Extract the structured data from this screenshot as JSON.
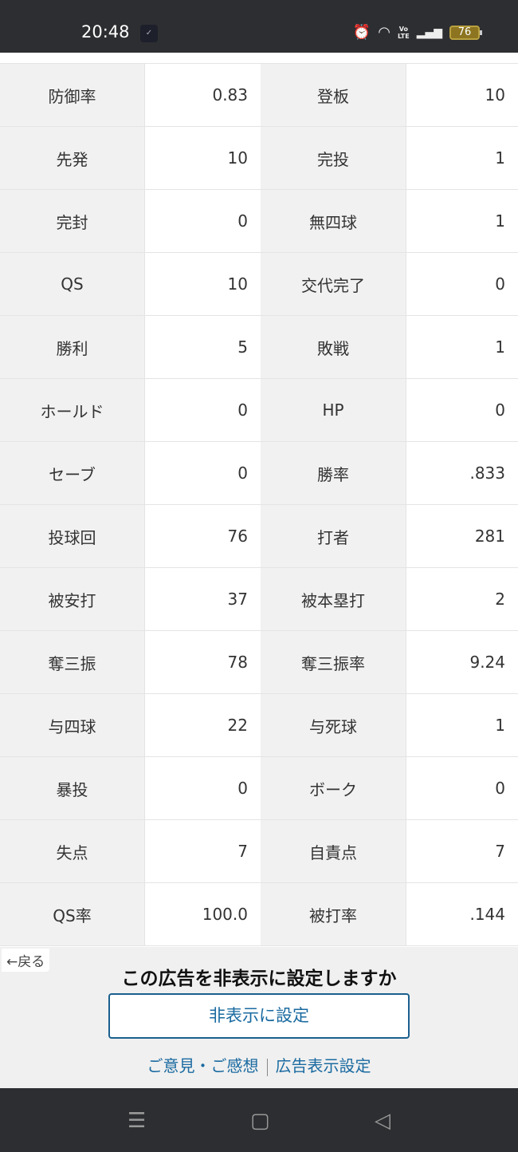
{
  "status_bar": {
    "time": "20:48",
    "battery": "76",
    "icons": [
      "app-notification-icon",
      "alarm-icon",
      "wifi-icon",
      "volte-icon",
      "signal-icon",
      "battery-icon"
    ],
    "volte_label": "Vo LTE"
  },
  "stats": [
    [
      "防御率",
      "0.83",
      "登板",
      "10"
    ],
    [
      "先発",
      "10",
      "完投",
      "1"
    ],
    [
      "完封",
      "0",
      "無四球",
      "1"
    ],
    [
      "QS",
      "10",
      "交代完了",
      "0"
    ],
    [
      "勝利",
      "5",
      "敗戦",
      "1"
    ],
    [
      "ホールド",
      "0",
      "HP",
      "0"
    ],
    [
      "セーブ",
      "0",
      "勝率",
      ".833"
    ],
    [
      "投球回",
      "76",
      "打者",
      "281"
    ],
    [
      "被安打",
      "37",
      "被本塁打",
      "2"
    ],
    [
      "奪三振",
      "78",
      "奪三振率",
      "9.24"
    ],
    [
      "与四球",
      "22",
      "与死球",
      "1"
    ],
    [
      "暴投",
      "0",
      "ボーク",
      "0"
    ],
    [
      "失点",
      "7",
      "自責点",
      "7"
    ],
    [
      "QS率",
      "100.0",
      "被打率",
      ".144"
    ]
  ],
  "ad": {
    "back": "←戻る",
    "question": "この広告を非表示に設定しますか",
    "button": "非表示に設定",
    "feedback": "ご意見・ご感想",
    "settings": "広告表示設定"
  },
  "nav": {
    "icons": [
      "menu-icon",
      "home-icon",
      "back-icon"
    ]
  },
  "colors": {
    "link": "#1a6aa0",
    "status_bg": "#2d2e31"
  }
}
